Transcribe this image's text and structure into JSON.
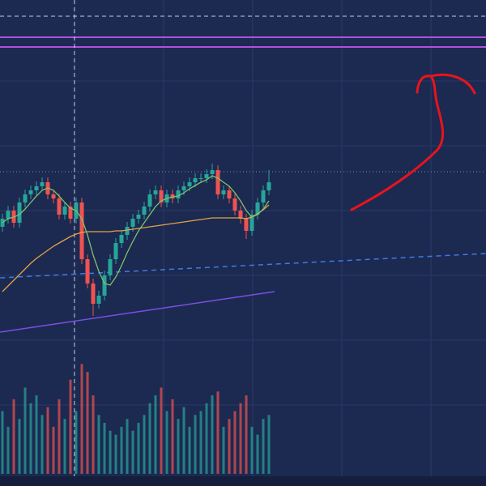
{
  "chart_data": {
    "type": "candlestick",
    "ylim": [
      0,
      420
    ],
    "volume_ylim": [
      0,
      160
    ],
    "open": [
      140,
      150,
      160,
      145,
      170,
      180,
      185,
      190,
      195,
      180,
      175,
      155,
      165,
      150,
      170,
      100,
      70,
      45,
      55,
      80,
      100,
      120,
      130,
      140,
      150,
      155,
      165,
      180,
      185,
      170,
      180,
      175,
      185,
      190,
      195,
      200,
      200,
      205,
      210,
      180,
      185,
      175,
      160,
      150,
      135,
      155,
      170,
      185
    ],
    "high": [
      156,
      166,
      166,
      176,
      186,
      191,
      196,
      201,
      201,
      186,
      181,
      171,
      171,
      176,
      176,
      106,
      76,
      61,
      86,
      106,
      126,
      136,
      146,
      156,
      161,
      171,
      186,
      191,
      191,
      186,
      186,
      191,
      196,
      201,
      206,
      206,
      211,
      218,
      216,
      191,
      191,
      181,
      166,
      156,
      161,
      176,
      191,
      210
    ],
    "low": [
      134,
      144,
      139,
      139,
      164,
      174,
      179,
      184,
      174,
      169,
      149,
      149,
      144,
      144,
      94,
      64,
      30,
      39,
      49,
      74,
      94,
      114,
      124,
      134,
      144,
      149,
      159,
      174,
      164,
      164,
      169,
      169,
      179,
      184,
      189,
      194,
      194,
      199,
      174,
      174,
      169,
      154,
      144,
      125,
      129,
      149,
      164,
      179
    ],
    "close": [
      150,
      160,
      145,
      170,
      180,
      185,
      190,
      195,
      180,
      175,
      155,
      165,
      150,
      170,
      100,
      70,
      45,
      55,
      80,
      100,
      120,
      130,
      140,
      150,
      155,
      165,
      180,
      185,
      170,
      180,
      175,
      185,
      190,
      195,
      200,
      200,
      205,
      210,
      180,
      185,
      175,
      160,
      150,
      135,
      155,
      170,
      185,
      195
    ],
    "volume": [
      80,
      60,
      95,
      70,
      110,
      90,
      100,
      75,
      85,
      60,
      95,
      70,
      120,
      80,
      140,
      130,
      100,
      75,
      65,
      55,
      50,
      60,
      70,
      55,
      65,
      75,
      90,
      100,
      110,
      80,
      95,
      70,
      85,
      60,
      75,
      80,
      90,
      100,
      105,
      60,
      70,
      80,
      90,
      100,
      60,
      50,
      70,
      75
    ],
    "up_color": "#26a69a",
    "down_color": "#ef5350",
    "moving_averages": [
      {
        "color": "#e3a445",
        "values": [
          60,
          67,
          74,
          81,
          88,
          95,
          101,
          106,
          111,
          116,
          120,
          124,
          128,
          131,
          133,
          134,
          134,
          134,
          134,
          134,
          135,
          135,
          136,
          137,
          138,
          139,
          140,
          141,
          142,
          143,
          144,
          145,
          146,
          147,
          148,
          149,
          150,
          151,
          151,
          151,
          151,
          151,
          151,
          150,
          152,
          156,
          161,
          167
        ]
      },
      {
        "color": "#7cc36b",
        "values": [
          145,
          150,
          152,
          155,
          162,
          170,
          178,
          185,
          188,
          185,
          178,
          170,
          163,
          160,
          150,
          130,
          105,
          85,
          70,
          68,
          78,
          92,
          108,
          122,
          135,
          145,
          155,
          165,
          172,
          175,
          177,
          178,
          182,
          187,
          191,
          195,
          198,
          203,
          200,
          195,
          190,
          182,
          172,
          160,
          152,
          155,
          162,
          172
        ]
      }
    ],
    "trend_lines": [
      {
        "color": "#7b4fe0",
        "dash": false,
        "x": [
          -0.4,
          48
        ],
        "values": [
          10,
          60
        ]
      },
      {
        "color": "#3f7be0",
        "dash": true,
        "x": [
          -0.4,
          85.3
        ],
        "values": [
          77,
          107
        ]
      }
    ],
    "levels": [
      {
        "value": 374,
        "color": "#b44fe0",
        "dash": false
      },
      {
        "value": 362,
        "color": "#b44fe0",
        "dash": false
      },
      {
        "value": 400,
        "color": "#c8cde0",
        "dash": true
      },
      {
        "value": 208,
        "color": "#5aa0b8",
        "dash": "dot"
      }
    ],
    "crosshair_x": 12.7
  }
}
